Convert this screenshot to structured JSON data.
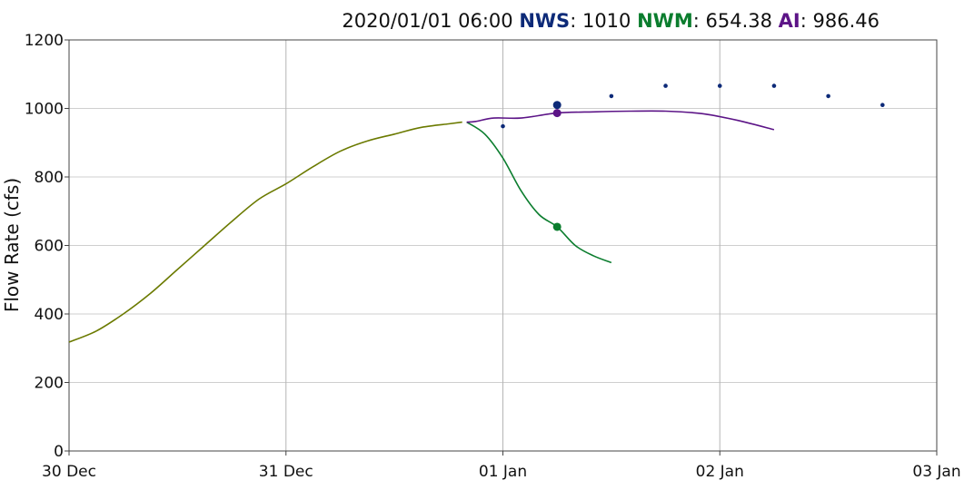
{
  "header": {
    "timestamp": "2020/01/01 06:00",
    "items": [
      {
        "label": "NWS",
        "separator": ": ",
        "value": "1010",
        "color": "#0d2a78"
      },
      {
        "label": "NWM",
        "separator": ": ",
        "value": "654.38",
        "color": "#0b7d2e"
      },
      {
        "label": "AI",
        "separator": ": ",
        "value": "986.46",
        "color": "#5c1487"
      }
    ]
  },
  "chart_data": {
    "type": "line",
    "title": "",
    "xlabel": "",
    "ylabel": "Flow Rate (cfs)",
    "ylim": [
      0,
      1200
    ],
    "xlim": [
      "2019-12-30 00:00",
      "2020-01-03 00:00"
    ],
    "yticks": [
      "0",
      "200",
      "400",
      "600",
      "800",
      "1000",
      "1200"
    ],
    "xticks": [
      {
        "label": "30 Dec",
        "x": "2019-12-30 00:00"
      },
      {
        "label": "31 Dec",
        "x": "2019-12-31 00:00"
      },
      {
        "label": "01 Jan",
        "x": "2020-01-01 00:00"
      },
      {
        "label": "02 Jan",
        "x": "2020-01-02 00:00"
      },
      {
        "label": "03 Jan",
        "x": "2020-01-03 00:00"
      }
    ],
    "grid": true,
    "series": [
      {
        "name": "",
        "style": "line",
        "color": "#6b7a00",
        "x": [
          "2019-12-30 00:00",
          "2019-12-30 03:00",
          "2019-12-30 06:00",
          "2019-12-30 09:00",
          "2019-12-30 12:00",
          "2019-12-30 15:00",
          "2019-12-30 18:00",
          "2019-12-30 21:00",
          "2019-12-31 00:00",
          "2019-12-31 03:00",
          "2019-12-31 06:00",
          "2019-12-31 09:00",
          "2019-12-31 12:00",
          "2019-12-31 15:00",
          "2019-12-31 18:00",
          "2019-12-31 19:30"
        ],
        "y": [
          318,
          350,
          400,
          460,
          530,
          600,
          670,
          735,
          780,
          830,
          875,
          905,
          925,
          945,
          955,
          960
        ]
      },
      {
        "name": "NWS",
        "style": "points",
        "color": "#0d2a78",
        "x": [
          "2020-01-01 00:00",
          "2020-01-01 06:00",
          "2020-01-01 12:00",
          "2020-01-01 18:00",
          "2020-01-02 00:00",
          "2020-01-02 06:00",
          "2020-01-02 12:00",
          "2020-01-02 18:00"
        ],
        "y": [
          948,
          1010,
          1036,
          1066,
          1066,
          1066,
          1036,
          1010
        ]
      },
      {
        "name": "NWM",
        "style": "line",
        "color": "#0b7d2e",
        "x": [
          "2019-12-31 20:00",
          "2019-12-31 22:00",
          "2020-01-01 00:00",
          "2020-01-01 02:00",
          "2020-01-01 04:00",
          "2020-01-01 06:00",
          "2020-01-01 08:00",
          "2020-01-01 10:00",
          "2020-01-01 12:00"
        ],
        "y": [
          960,
          925,
          855,
          760,
          690,
          654.38,
          600,
          570,
          550
        ]
      },
      {
        "name": "AI",
        "style": "line",
        "color": "#5c1487",
        "x": [
          "2019-12-31 20:00",
          "2019-12-31 21:00",
          "2019-12-31 23:00",
          "2020-01-01 02:00",
          "2020-01-01 06:00",
          "2020-01-01 10:00",
          "2020-01-01 14:00",
          "2020-01-01 18:00",
          "2020-01-01 22:00",
          "2020-01-02 02:00",
          "2020-01-02 06:00"
        ],
        "y": [
          960,
          962,
          972,
          972,
          986.46,
          990,
          992,
          992,
          985,
          965,
          938
        ]
      }
    ],
    "highlight_x": "2020-01-01 06:00"
  }
}
